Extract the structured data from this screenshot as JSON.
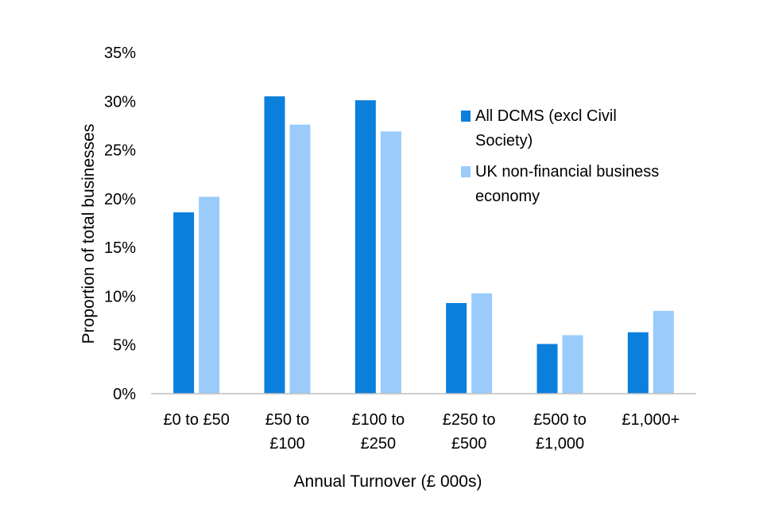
{
  "chart_data": {
    "type": "bar",
    "title": "",
    "xlabel": "Annual Turnover (£ 000s)",
    "ylabel": "Proportion of total businesses",
    "categories": [
      [
        "£0 to £50"
      ],
      [
        "£50 to",
        "£100"
      ],
      [
        "£100 to",
        "£250"
      ],
      [
        "£250 to",
        "£500"
      ],
      [
        "£500 to",
        "£1,000"
      ],
      [
        "£1,000+"
      ]
    ],
    "series": [
      {
        "name": "All DCMS (excl Civil Society)",
        "legend_lines": [
          "All DCMS (excl Civil",
          "Society)"
        ],
        "color": "#0b7fdc",
        "values": [
          18.6,
          30.5,
          30.1,
          9.3,
          5.1,
          6.3
        ]
      },
      {
        "name": "UK non-financial business economy",
        "legend_lines": [
          "UK non-financial business",
          "economy"
        ],
        "color": "#9acbfb",
        "values": [
          20.2,
          27.6,
          26.9,
          10.3,
          6.0,
          8.5
        ]
      }
    ],
    "ylim": [
      0,
      35
    ],
    "yticks": [
      0,
      5,
      10,
      15,
      20,
      25,
      30,
      35
    ],
    "ytick_labels": [
      "0%",
      "5%",
      "10%",
      "15%",
      "20%",
      "25%",
      "30%",
      "35%"
    ],
    "grid": false,
    "legend_position": "top-right"
  }
}
